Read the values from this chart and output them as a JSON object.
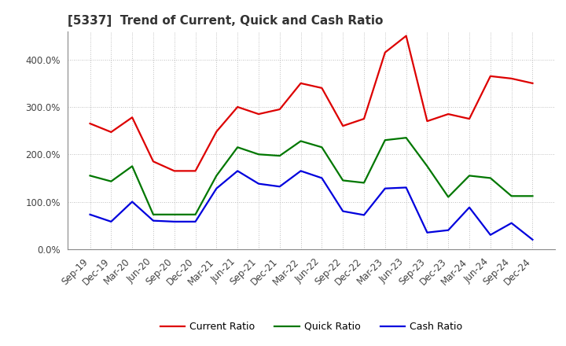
{
  "title": "[5337]  Trend of Current, Quick and Cash Ratio",
  "labels": [
    "Sep-19",
    "Dec-19",
    "Mar-20",
    "Jun-20",
    "Sep-20",
    "Dec-20",
    "Mar-21",
    "Jun-21",
    "Sep-21",
    "Dec-21",
    "Mar-22",
    "Jun-22",
    "Sep-22",
    "Dec-22",
    "Mar-23",
    "Jun-23",
    "Sep-23",
    "Dec-23",
    "Mar-24",
    "Jun-24",
    "Sep-24",
    "Dec-24"
  ],
  "current_ratio": [
    265,
    247,
    278,
    185,
    165,
    165,
    248,
    300,
    285,
    295,
    350,
    340,
    260,
    275,
    415,
    450,
    270,
    285,
    275,
    365,
    360,
    350
  ],
  "quick_ratio": [
    155,
    143,
    175,
    73,
    73,
    73,
    155,
    215,
    200,
    197,
    228,
    215,
    145,
    140,
    230,
    235,
    175,
    110,
    155,
    150,
    112,
    112
  ],
  "cash_ratio": [
    73,
    58,
    100,
    60,
    58,
    58,
    128,
    165,
    138,
    132,
    165,
    150,
    80,
    72,
    128,
    130,
    35,
    40,
    88,
    30,
    55,
    20
  ],
  "current_color": "#dd0000",
  "quick_color": "#007700",
  "cash_color": "#0000dd",
  "ylim": [
    0,
    460
  ],
  "yticks": [
    0,
    100,
    200,
    300,
    400
  ],
  "background_color": "#ffffff",
  "grid_color": "#aaaaaa",
  "line_width": 1.6,
  "title_fontsize": 11,
  "tick_fontsize": 8.5,
  "legend_fontsize": 9
}
